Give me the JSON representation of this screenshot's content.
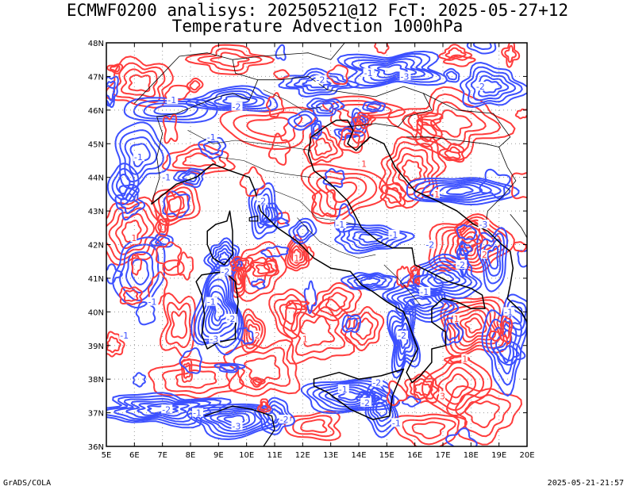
{
  "title_line1": "ECMWF0200 analisys: 20250521@12 FcT: 2025-05-27+12",
  "title_line2": "Temperature Advection 1000hPa",
  "footer_left": "GrADS/COLA",
  "footer_right": "2025-05-21-21:57",
  "map": {
    "lon_range": [
      5,
      20
    ],
    "lat_range": [
      36,
      48
    ],
    "lon_ticks": [
      "5E",
      "6E",
      "7E",
      "8E",
      "9E",
      "10E",
      "11E",
      "12E",
      "13E",
      "14E",
      "15E",
      "16E",
      "17E",
      "18E",
      "19E",
      "20E"
    ],
    "lat_ticks": [
      "36N",
      "37N",
      "38N",
      "39N",
      "40N",
      "41N",
      "42N",
      "43N",
      "44N",
      "45N",
      "46N",
      "47N",
      "48N"
    ],
    "grid": "dotted",
    "colors": {
      "warm_advection": "#ff3c3c",
      "cold_advection": "#3c50ff",
      "coastline": "#000000",
      "grid": "#999999"
    },
    "contour_labels": [
      "-1",
      "-2",
      "-3",
      "1",
      "2",
      "3"
    ]
  }
}
